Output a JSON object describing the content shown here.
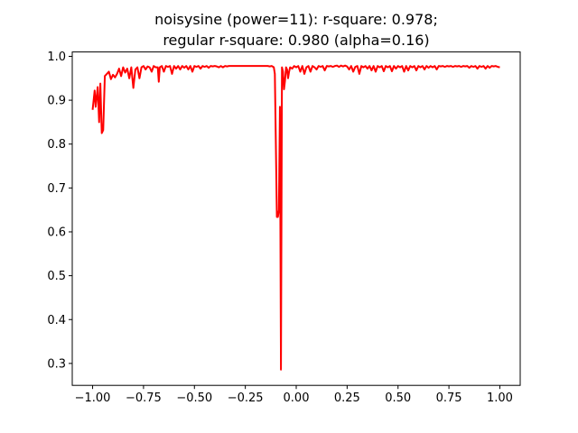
{
  "chart_data": {
    "type": "line",
    "title_line1": "noisysine (power=11): r-square: 0.978;",
    "title_line2": "regular r-square: 0.980 (alpha=0.16)",
    "xlabel": "",
    "ylabel": "",
    "xlim": [
      -1.1,
      1.1
    ],
    "ylim": [
      0.25,
      1.01
    ],
    "x_ticks": [
      -1.0,
      -0.75,
      -0.5,
      -0.25,
      0.0,
      0.25,
      0.5,
      0.75,
      1.0
    ],
    "x_tick_labels": [
      "−1.00",
      "−0.75",
      "−0.50",
      "−0.25",
      "0.00",
      "0.25",
      "0.50",
      "0.75",
      "1.00"
    ],
    "y_ticks": [
      0.3,
      0.4,
      0.5,
      0.6,
      0.7,
      0.8,
      0.9,
      1.0
    ],
    "y_tick_labels": [
      "0.3",
      "0.4",
      "0.5",
      "0.6",
      "0.7",
      "0.8",
      "0.9",
      "1.0"
    ],
    "grid": false,
    "legend": "none",
    "series": [
      {
        "color": "#ff0000",
        "points": [
          [
            -1.0,
            0.878
          ],
          [
            -0.99,
            0.922
          ],
          [
            -0.985,
            0.885
          ],
          [
            -0.975,
            0.93
          ],
          [
            -0.968,
            0.85
          ],
          [
            -0.962,
            0.938
          ],
          [
            -0.955,
            0.825
          ],
          [
            -0.948,
            0.832
          ],
          [
            -0.94,
            0.955
          ],
          [
            -0.93,
            0.96
          ],
          [
            -0.92,
            0.965
          ],
          [
            -0.91,
            0.948
          ],
          [
            -0.9,
            0.958
          ],
          [
            -0.89,
            0.952
          ],
          [
            -0.88,
            0.96
          ],
          [
            -0.87,
            0.972
          ],
          [
            -0.86,
            0.955
          ],
          [
            -0.85,
            0.975
          ],
          [
            -0.84,
            0.963
          ],
          [
            -0.83,
            0.972
          ],
          [
            -0.82,
            0.95
          ],
          [
            -0.81,
            0.975
          ],
          [
            -0.8,
            0.928
          ],
          [
            -0.79,
            0.97
          ],
          [
            -0.78,
            0.975
          ],
          [
            -0.77,
            0.95
          ],
          [
            -0.76,
            0.975
          ],
          [
            -0.75,
            0.978
          ],
          [
            -0.74,
            0.97
          ],
          [
            -0.73,
            0.977
          ],
          [
            -0.72,
            0.975
          ],
          [
            -0.71,
            0.965
          ],
          [
            -0.7,
            0.978
          ],
          [
            -0.69,
            0.975
          ],
          [
            -0.68,
            0.975
          ],
          [
            -0.675,
            0.942
          ],
          [
            -0.67,
            0.975
          ],
          [
            -0.66,
            0.978
          ],
          [
            -0.65,
            0.965
          ],
          [
            -0.64,
            0.978
          ],
          [
            -0.63,
            0.976
          ],
          [
            -0.62,
            0.978
          ],
          [
            -0.61,
            0.96
          ],
          [
            -0.6,
            0.978
          ],
          [
            -0.59,
            0.972
          ],
          [
            -0.58,
            0.978
          ],
          [
            -0.57,
            0.97
          ],
          [
            -0.56,
            0.978
          ],
          [
            -0.55,
            0.974
          ],
          [
            -0.54,
            0.978
          ],
          [
            -0.53,
            0.97
          ],
          [
            -0.52,
            0.978
          ],
          [
            -0.51,
            0.965
          ],
          [
            -0.5,
            0.978
          ],
          [
            -0.49,
            0.976
          ],
          [
            -0.48,
            0.978
          ],
          [
            -0.47,
            0.972
          ],
          [
            -0.46,
            0.978
          ],
          [
            -0.45,
            0.976
          ],
          [
            -0.44,
            0.978
          ],
          [
            -0.43,
            0.974
          ],
          [
            -0.42,
            0.978
          ],
          [
            -0.41,
            0.977
          ],
          [
            -0.4,
            0.978
          ],
          [
            -0.39,
            0.977
          ],
          [
            -0.38,
            0.975
          ],
          [
            -0.37,
            0.978
          ],
          [
            -0.36,
            0.975
          ],
          [
            -0.35,
            0.978
          ],
          [
            -0.34,
            0.977
          ],
          [
            -0.33,
            0.978
          ],
          [
            -0.32,
            0.978
          ],
          [
            -0.31,
            0.978
          ],
          [
            -0.3,
            0.978
          ],
          [
            -0.29,
            0.978
          ],
          [
            -0.28,
            0.978
          ],
          [
            -0.27,
            0.978
          ],
          [
            -0.26,
            0.978
          ],
          [
            -0.25,
            0.978
          ],
          [
            -0.24,
            0.978
          ],
          [
            -0.23,
            0.978
          ],
          [
            -0.22,
            0.978
          ],
          [
            -0.21,
            0.978
          ],
          [
            -0.2,
            0.978
          ],
          [
            -0.19,
            0.978
          ],
          [
            -0.18,
            0.978
          ],
          [
            -0.17,
            0.978
          ],
          [
            -0.16,
            0.978
          ],
          [
            -0.15,
            0.978
          ],
          [
            -0.14,
            0.978
          ],
          [
            -0.13,
            0.977
          ],
          [
            -0.12,
            0.978
          ],
          [
            -0.11,
            0.975
          ],
          [
            -0.105,
            0.96
          ],
          [
            -0.1,
            0.8
          ],
          [
            -0.095,
            0.634
          ],
          [
            -0.09,
            0.634
          ],
          [
            -0.085,
            0.65
          ],
          [
            -0.08,
            0.885
          ],
          [
            -0.075,
            0.286
          ],
          [
            -0.07,
            0.975
          ],
          [
            -0.065,
            0.965
          ],
          [
            -0.06,
            0.925
          ],
          [
            -0.055,
            0.945
          ],
          [
            -0.05,
            0.975
          ],
          [
            -0.045,
            0.97
          ],
          [
            -0.04,
            0.95
          ],
          [
            -0.035,
            0.965
          ],
          [
            -0.03,
            0.975
          ],
          [
            -0.02,
            0.972
          ],
          [
            -0.01,
            0.978
          ],
          [
            0.0,
            0.975
          ],
          [
            0.01,
            0.978
          ],
          [
            0.02,
            0.965
          ],
          [
            0.03,
            0.978
          ],
          [
            0.04,
            0.96
          ],
          [
            0.05,
            0.975
          ],
          [
            0.06,
            0.978
          ],
          [
            0.07,
            0.965
          ],
          [
            0.08,
            0.978
          ],
          [
            0.09,
            0.975
          ],
          [
            0.1,
            0.97
          ],
          [
            0.11,
            0.978
          ],
          [
            0.12,
            0.976
          ],
          [
            0.13,
            0.978
          ],
          [
            0.14,
            0.968
          ],
          [
            0.15,
            0.978
          ],
          [
            0.16,
            0.977
          ],
          [
            0.17,
            0.978
          ],
          [
            0.18,
            0.976
          ],
          [
            0.19,
            0.978
          ],
          [
            0.2,
            0.979
          ],
          [
            0.21,
            0.976
          ],
          [
            0.22,
            0.979
          ],
          [
            0.23,
            0.977
          ],
          [
            0.24,
            0.979
          ],
          [
            0.25,
            0.977
          ],
          [
            0.26,
            0.97
          ],
          [
            0.27,
            0.978
          ],
          [
            0.28,
            0.965
          ],
          [
            0.29,
            0.976
          ],
          [
            0.3,
            0.978
          ],
          [
            0.31,
            0.96
          ],
          [
            0.32,
            0.978
          ],
          [
            0.33,
            0.975
          ],
          [
            0.34,
            0.978
          ],
          [
            0.35,
            0.972
          ],
          [
            0.36,
            0.978
          ],
          [
            0.37,
            0.968
          ],
          [
            0.38,
            0.978
          ],
          [
            0.39,
            0.965
          ],
          [
            0.4,
            0.978
          ],
          [
            0.41,
            0.975
          ],
          [
            0.42,
            0.978
          ],
          [
            0.43,
            0.966
          ],
          [
            0.44,
            0.978
          ],
          [
            0.45,
            0.975
          ],
          [
            0.46,
            0.978
          ],
          [
            0.47,
            0.966
          ],
          [
            0.48,
            0.978
          ],
          [
            0.49,
            0.972
          ],
          [
            0.5,
            0.978
          ],
          [
            0.51,
            0.975
          ],
          [
            0.52,
            0.978
          ],
          [
            0.53,
            0.965
          ],
          [
            0.54,
            0.978
          ],
          [
            0.55,
            0.968
          ],
          [
            0.56,
            0.978
          ],
          [
            0.57,
            0.975
          ],
          [
            0.58,
            0.978
          ],
          [
            0.59,
            0.968
          ],
          [
            0.6,
            0.978
          ],
          [
            0.61,
            0.975
          ],
          [
            0.62,
            0.978
          ],
          [
            0.63,
            0.97
          ],
          [
            0.64,
            0.978
          ],
          [
            0.65,
            0.974
          ],
          [
            0.66,
            0.978
          ],
          [
            0.67,
            0.975
          ],
          [
            0.68,
            0.978
          ],
          [
            0.69,
            0.97
          ],
          [
            0.7,
            0.978
          ],
          [
            0.71,
            0.977
          ],
          [
            0.72,
            0.978
          ],
          [
            0.73,
            0.976
          ],
          [
            0.74,
            0.978
          ],
          [
            0.75,
            0.977
          ],
          [
            0.76,
            0.978
          ],
          [
            0.77,
            0.976
          ],
          [
            0.78,
            0.978
          ],
          [
            0.79,
            0.977
          ],
          [
            0.8,
            0.978
          ],
          [
            0.81,
            0.976
          ],
          [
            0.82,
            0.978
          ],
          [
            0.83,
            0.977
          ],
          [
            0.84,
            0.978
          ],
          [
            0.85,
            0.974
          ],
          [
            0.86,
            0.978
          ],
          [
            0.87,
            0.976
          ],
          [
            0.88,
            0.978
          ],
          [
            0.89,
            0.972
          ],
          [
            0.9,
            0.978
          ],
          [
            0.91,
            0.976
          ],
          [
            0.92,
            0.978
          ],
          [
            0.93,
            0.972
          ],
          [
            0.94,
            0.978
          ],
          [
            0.95,
            0.974
          ],
          [
            0.96,
            0.978
          ],
          [
            0.97,
            0.977
          ],
          [
            0.98,
            0.978
          ],
          [
            0.99,
            0.976
          ],
          [
            1.0,
            0.975
          ]
        ]
      }
    ]
  }
}
